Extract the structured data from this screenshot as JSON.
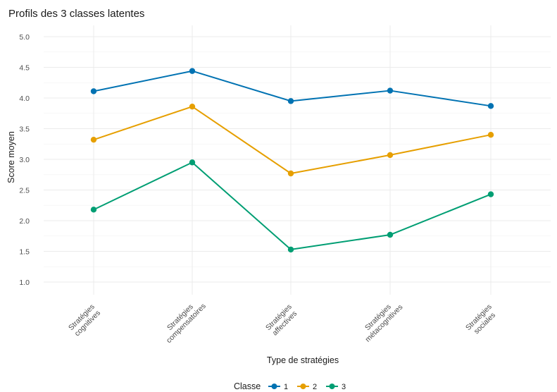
{
  "chart_data": {
    "type": "line",
    "title": "Profils des 3 classes latentes",
    "xlabel": "Type de stratégies",
    "ylabel": "Score moyen",
    "categories": [
      [
        "Stratégies",
        "cognitives"
      ],
      [
        "Stratégies",
        "compensatoires"
      ],
      [
        "Stratégies",
        "affectives"
      ],
      [
        "Stratégies",
        "métacognitives"
      ],
      [
        "Stratégies",
        "sociales"
      ]
    ],
    "ylim": [
      1.0,
      5.0
    ],
    "yticks": [
      "1.0",
      "1.5",
      "2.0",
      "2.5",
      "3.0",
      "3.5",
      "4.0",
      "4.5",
      "5.0"
    ],
    "grid": true,
    "legend": {
      "title": "Classe",
      "position": "bottom"
    },
    "series": [
      {
        "name": "1",
        "color": "#0072B2",
        "values": [
          4.11,
          4.44,
          3.95,
          4.12,
          3.87
        ]
      },
      {
        "name": "2",
        "color": "#E69F00",
        "values": [
          3.32,
          3.86,
          2.77,
          3.07,
          3.4
        ]
      },
      {
        "name": "3",
        "color": "#009E73",
        "values": [
          2.18,
          2.95,
          1.53,
          1.77,
          2.43
        ]
      }
    ]
  }
}
